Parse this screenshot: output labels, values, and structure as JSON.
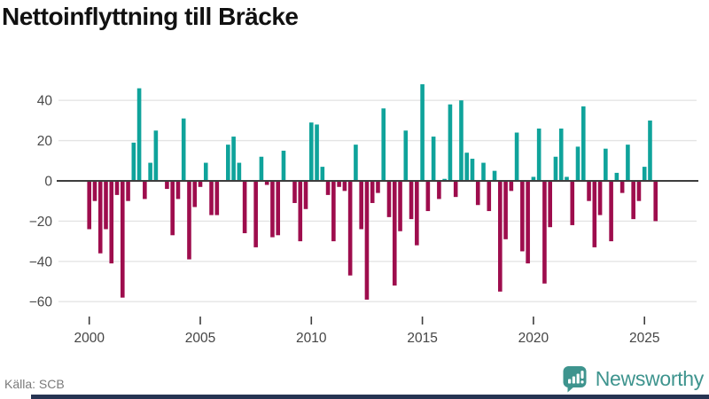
{
  "header": {
    "title": "Nettoinflyttning till Bräcke"
  },
  "footer": {
    "source": "Källa: SCB",
    "brand": "Newsworthy"
  },
  "colors": {
    "positive": "#0fa39b",
    "negative": "#9e0d4d",
    "grid": "#e4e4e4",
    "zero_line": "#3d3d3d",
    "axis_text": "#4a4a4a",
    "title_text": "#111111",
    "source_text": "#7a7a7a",
    "brand_teal": "#3e948e",
    "bottom_bar": "#263452",
    "background": "#ffffff"
  },
  "chart_data": {
    "type": "bar",
    "title": "Nettoinflyttning till Bräcke",
    "frequency": "quarterly",
    "x_start": "2000 Q1",
    "x_end": "2025 Q3",
    "xlabel": "",
    "ylabel": "",
    "yticks": [
      40,
      20,
      0,
      -20,
      -40,
      -60
    ],
    "xticks": [
      2000,
      2005,
      2010,
      2015,
      2020,
      2025
    ],
    "ylim": [
      -62,
      50
    ],
    "grid": "horizontal",
    "legend": "none",
    "categories": [
      "2000 Q1",
      "2000 Q2",
      "2000 Q3",
      "2000 Q4",
      "2001 Q1",
      "2001 Q2",
      "2001 Q3",
      "2001 Q4",
      "2002 Q1",
      "2002 Q2",
      "2002 Q3",
      "2002 Q4",
      "2003 Q1",
      "2003 Q2",
      "2003 Q3",
      "2003 Q4",
      "2004 Q1",
      "2004 Q2",
      "2004 Q3",
      "2004 Q4",
      "2005 Q1",
      "2005 Q2",
      "2005 Q3",
      "2005 Q4",
      "2006 Q1",
      "2006 Q2",
      "2006 Q3",
      "2006 Q4",
      "2007 Q1",
      "2007 Q2",
      "2007 Q3",
      "2007 Q4",
      "2008 Q1",
      "2008 Q2",
      "2008 Q3",
      "2008 Q4",
      "2009 Q1",
      "2009 Q2",
      "2009 Q3",
      "2009 Q4",
      "2010 Q1",
      "2010 Q2",
      "2010 Q3",
      "2010 Q4",
      "2011 Q1",
      "2011 Q2",
      "2011 Q3",
      "2011 Q4",
      "2012 Q1",
      "2012 Q2",
      "2012 Q3",
      "2012 Q4",
      "2013 Q1",
      "2013 Q2",
      "2013 Q3",
      "2013 Q4",
      "2014 Q1",
      "2014 Q2",
      "2014 Q3",
      "2014 Q4",
      "2015 Q1",
      "2015 Q2",
      "2015 Q3",
      "2015 Q4",
      "2016 Q1",
      "2016 Q2",
      "2016 Q3",
      "2016 Q4",
      "2017 Q1",
      "2017 Q2",
      "2017 Q3",
      "2017 Q4",
      "2018 Q1",
      "2018 Q2",
      "2018 Q3",
      "2018 Q4",
      "2019 Q1",
      "2019 Q2",
      "2019 Q3",
      "2019 Q4",
      "2020 Q1",
      "2020 Q2",
      "2020 Q3",
      "2020 Q4",
      "2021 Q1",
      "2021 Q2",
      "2021 Q3",
      "2021 Q4",
      "2022 Q1",
      "2022 Q2",
      "2022 Q3",
      "2022 Q4",
      "2023 Q1",
      "2023 Q2",
      "2023 Q3",
      "2023 Q4",
      "2024 Q1",
      "2024 Q2",
      "2024 Q3",
      "2024 Q4",
      "2025 Q1",
      "2025 Q2",
      "2025 Q3"
    ],
    "values": [
      -24,
      -10,
      -36,
      -24,
      -41,
      -7,
      -58,
      -10,
      19,
      46,
      -9,
      9,
      25,
      0,
      -4,
      -27,
      -9,
      31,
      -39,
      -13,
      -3,
      9,
      -17,
      -17,
      0,
      18,
      22,
      9,
      -26,
      0,
      -33,
      12,
      -2,
      -28,
      -27,
      15,
      0,
      -11,
      -30,
      -14,
      29,
      28,
      7,
      -7,
      -30,
      -3,
      -5,
      -47,
      18,
      -24,
      -59,
      -11,
      -6,
      36,
      -18,
      -52,
      -25,
      25,
      -19,
      -32,
      48,
      -15,
      22,
      -9,
      1,
      38,
      -8,
      40,
      14,
      11,
      -12,
      9,
      -15,
      5,
      -55,
      -29,
      -5,
      24,
      -35,
      -41,
      2,
      26,
      -51,
      -23,
      12,
      26,
      2,
      -22,
      17,
      37,
      -10,
      -33,
      -17,
      16,
      -30,
      4,
      -6,
      18,
      -19,
      -10,
      7,
      30,
      -20
    ]
  }
}
